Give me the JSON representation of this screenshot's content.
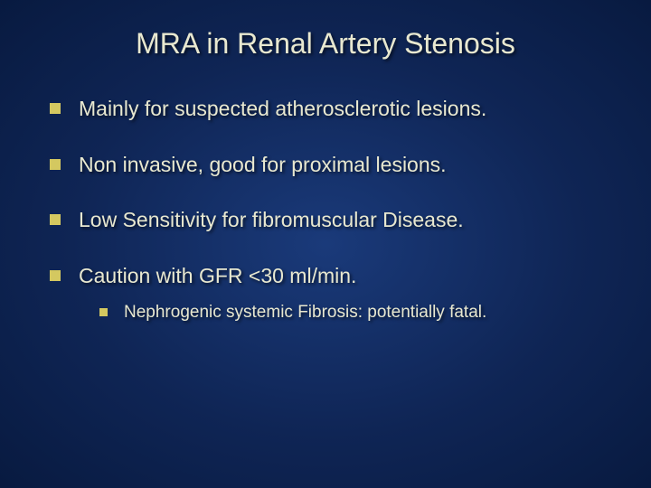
{
  "title": "MRA in Renal Artery Stenosis",
  "bullets": [
    {
      "text": "Mainly for suspected atherosclerotic lesions."
    },
    {
      "text": "Non invasive, good for proximal lesions."
    },
    {
      "text": "Low Sensitivity for fibromuscular Disease."
    },
    {
      "text": " Caution with GFR <30 ml/min."
    }
  ],
  "subbullet": {
    "text": "Nephrogenic systemic Fibrosis: potentially fatal."
  },
  "style": {
    "background_gradient_center": "#1a3a7a",
    "background_gradient_mid": "#0f2555",
    "background_gradient_edge": "#081a40",
    "bullet_color": "#d4c860",
    "text_color": "#e8e8d0",
    "title_fontsize": 32,
    "bullet_fontsize": 23,
    "sub_fontsize": 19,
    "bullet_size": 12,
    "sub_bullet_size": 9
  }
}
